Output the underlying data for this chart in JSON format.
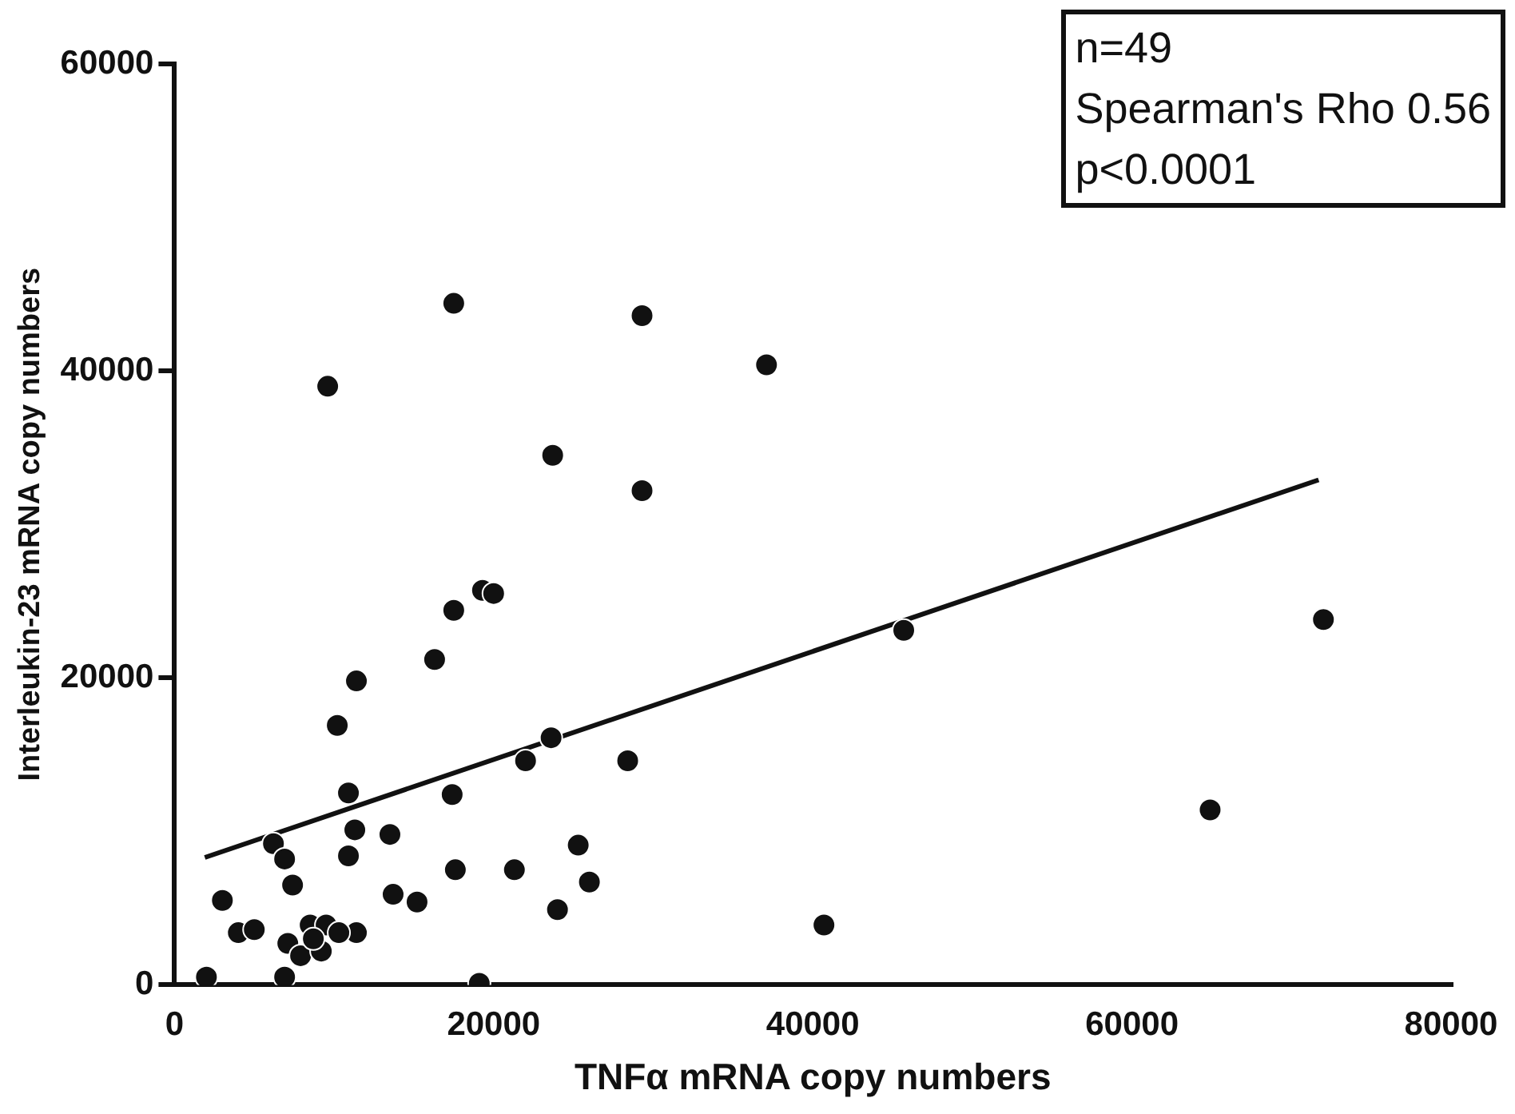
{
  "chart_data": {
    "type": "scatter",
    "xlabel": "TNFα mRNA copy numbers",
    "ylabel": "Interleukin-23 mRNA copy numbers",
    "annotations": [
      "n=49",
      "Spearman's Rho 0.56",
      "p<0.0001"
    ],
    "xlim": [
      0,
      80000
    ],
    "xticks": [
      0,
      20000,
      40000,
      60000,
      80000
    ],
    "ylim": [
      0,
      60000
    ],
    "yticks": [
      0,
      20000,
      40000,
      60000
    ],
    "grid": false,
    "legend": false,
    "marker": "circle",
    "series": [
      {
        "color": "#111111",
        "x": [
          17500,
          9600,
          29300,
          37100,
          23700,
          29300,
          45700,
          64900,
          72000,
          40700,
          7100,
          7900,
          9200,
          8500,
          9500,
          11400,
          6900,
          3000,
          4000,
          5000,
          2000,
          6200,
          6900,
          7400,
          10900,
          11300,
          10900,
          10200,
          11400,
          13500,
          13700,
          15200,
          16300,
          17500,
          19300,
          20000,
          17400,
          17600,
          19100,
          21300,
          22000,
          23600,
          24000,
          25300,
          26000,
          28400,
          10300,
          8700
        ],
        "values": [
          44400,
          39000,
          43600,
          40400,
          34500,
          32200,
          23100,
          11400,
          23800,
          3900,
          2700,
          1900,
          2200,
          3900,
          3900,
          3400,
          500,
          5500,
          3400,
          3600,
          500,
          9200,
          8200,
          6500,
          12500,
          10100,
          8400,
          16900,
          19800,
          9800,
          5900,
          5400,
          21200,
          24400,
          25700,
          25500,
          12400,
          7500,
          100,
          7500,
          14600,
          16100,
          4900,
          9100,
          6700,
          14600,
          3400,
          3000
        ]
      },
      {
        "type": "line",
        "color": "#111111",
        "marker": "none",
        "line_style": "solid",
        "x": [
          1900,
          71700
        ],
        "values": [
          8300,
          32900
        ]
      }
    ]
  }
}
